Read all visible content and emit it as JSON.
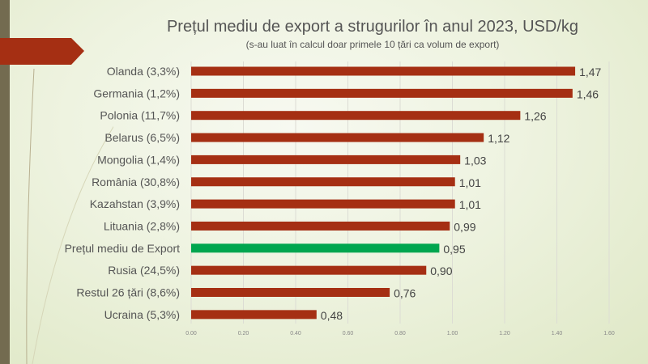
{
  "chart_data": {
    "type": "bar",
    "orientation": "horizontal",
    "title": "Prețul mediu de export a strugurilor în anul 2023, USD/kg",
    "subtitle": "(s-au luat în calcul doar primele 10 țări ca volum de export)",
    "categories": [
      "Olanda (3,3%)",
      "Germania (1,2%)",
      "Polonia (11,7%)",
      "Belarus (6,5%)",
      "Mongolia (1,4%)",
      "România (30,8%)",
      "Kazahstan (3,9%)",
      "Lituania (2,8%)",
      "Prețul mediu de Export",
      "Rusia (24,5%)",
      "Restul 26 țări (8,6%)",
      "Ucraina (5,3%)"
    ],
    "values": [
      1.47,
      1.46,
      1.26,
      1.12,
      1.03,
      1.01,
      1.01,
      0.99,
      0.95,
      0.9,
      0.76,
      0.48
    ],
    "value_labels": [
      "1,47",
      "1,46",
      "1,26",
      "1,12",
      "1,03",
      "1,01",
      "1,01",
      "0,99",
      "0,95",
      "0,90",
      "0,76",
      "0,48"
    ],
    "highlight_index": 8,
    "xlim": [
      0,
      1.6
    ],
    "xticks": [
      "0.00",
      "0.20",
      "0.40",
      "0.60",
      "0.80",
      "1.00",
      "1.20",
      "1.40",
      "1.60"
    ],
    "grid": true,
    "colors": {
      "bar": "#a52f13",
      "highlight": "#00a64f",
      "text": "#555555"
    }
  }
}
